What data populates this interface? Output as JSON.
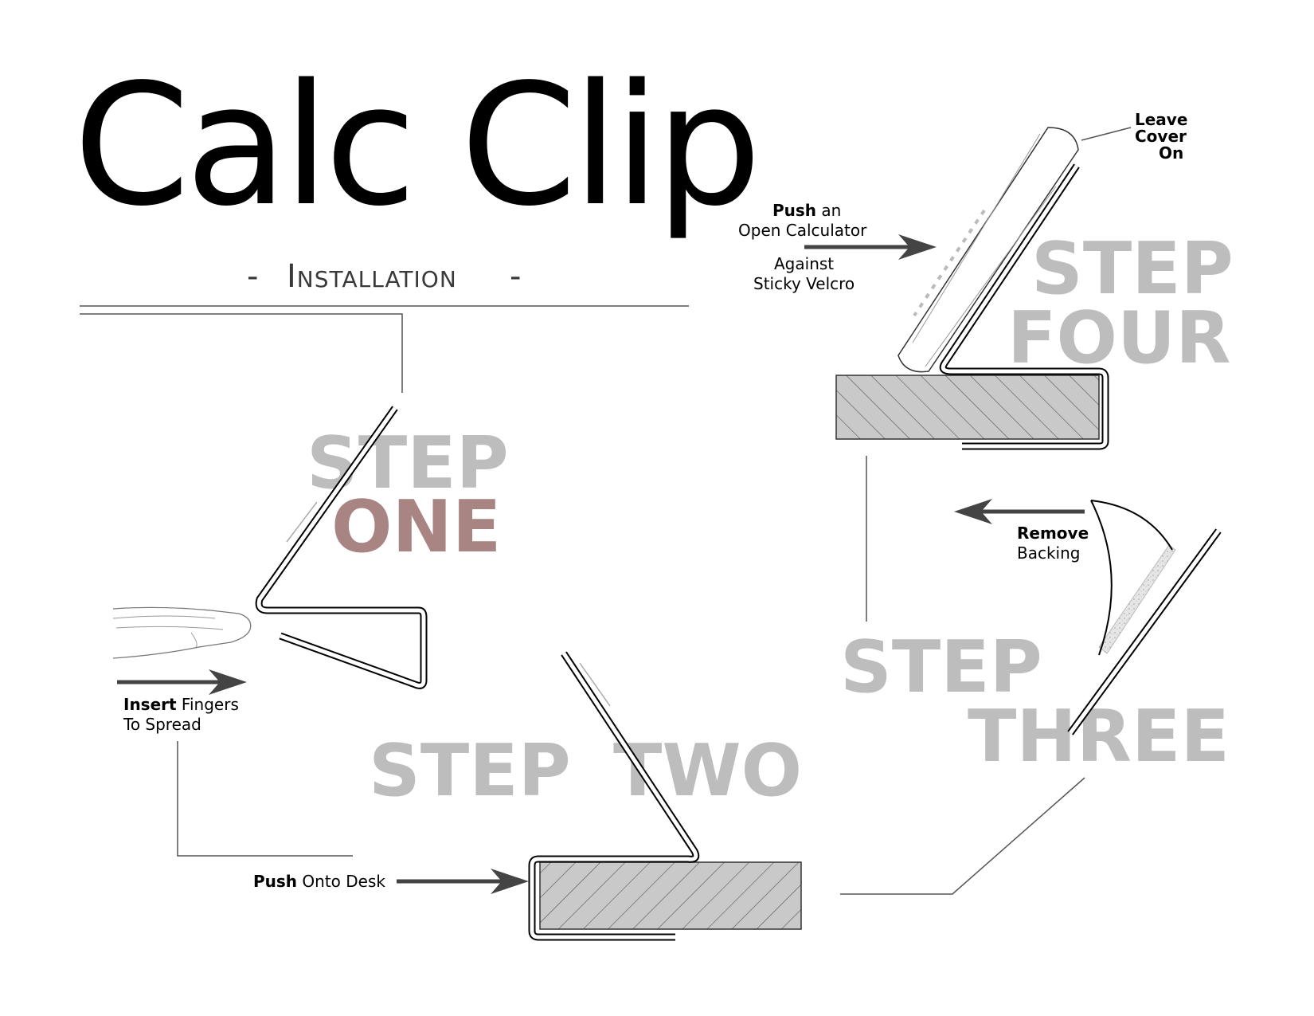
{
  "title": "Calc Clip",
  "subtitle": "Installation",
  "steps": {
    "one": {
      "word1": "STEP",
      "word2": "ONE"
    },
    "two": {
      "word1": "STEP",
      "word2": "TWO"
    },
    "three": {
      "word1": "STEP",
      "word2": "THREE"
    },
    "four": {
      "word1": "STEP",
      "word2": "FOUR"
    }
  },
  "captions": {
    "step_one": {
      "bold": "Insert",
      "rest": " Fingers",
      "line2": "To Spread"
    },
    "step_two": {
      "bold": "Push",
      "rest": " Onto Desk"
    },
    "step_three": {
      "bold": "Remove",
      "line2": "Backing"
    },
    "step_four_push": {
      "bold": "Push",
      "rest": " an",
      "line2": "Open Calculator"
    },
    "step_four_against": {
      "line1": "Against",
      "line2": "Sticky Velcro"
    },
    "step_four_cover": {
      "line1": "Leave",
      "line2": "Cover",
      "line3": "On"
    }
  },
  "colors": {
    "step_gray": "#bdbdbd",
    "step_one_accent": "#a88583",
    "arrow": "#444444",
    "desk_fill": "#c9c9c9"
  },
  "icons": [
    "hand-icon",
    "calculator-icon",
    "velcro-backing-icon",
    "desk-icon",
    "clip-icon",
    "arrow-icon"
  ]
}
